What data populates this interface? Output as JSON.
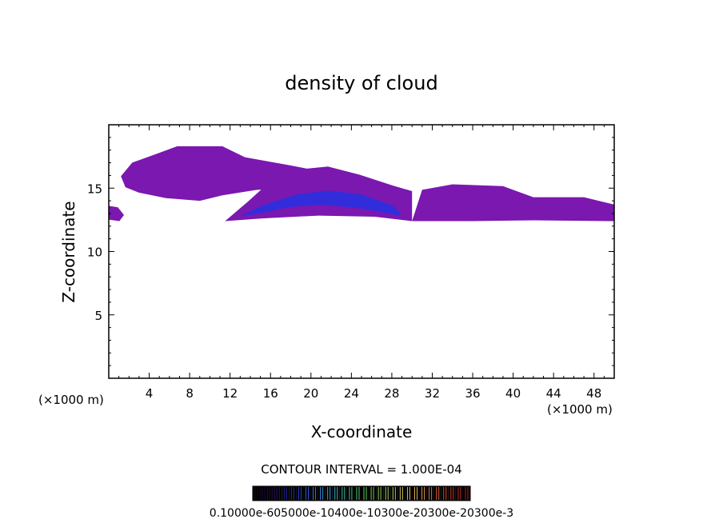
{
  "chart_data": {
    "type": "heatmap",
    "title": "density of cloud",
    "xlabel": "X-coordinate",
    "ylabel": "Z-coordinate",
    "xlim": [
      0,
      50
    ],
    "ylim": [
      0,
      20
    ],
    "x_ticks": [
      "4",
      "8",
      "12",
      "16",
      "20",
      "24",
      "28",
      "32",
      "36",
      "40",
      "44",
      "48"
    ],
    "x_tick_values": [
      4,
      8,
      12,
      16,
      20,
      24,
      28,
      32,
      36,
      40,
      44,
      48
    ],
    "y_ticks": [
      "5",
      "10",
      "15"
    ],
    "y_tick_values": [
      5,
      10,
      15
    ],
    "x_unit_left": "(×1000 m)",
    "x_unit_right": "(×1000 m)",
    "contour_interval": "CONTOUR INTERVAL = 1.000E-04",
    "colorbar_labels": "0.10000e-605000e-10400e-10300e-20300e-20300e-3",
    "colorbar_range": [
      0.0001,
      0.003
    ],
    "colorbar_colors": [
      "#1a0630",
      "#2a0a70",
      "#2030c0",
      "#3a70e0",
      "#40b0e0",
      "#40c880",
      "#70d050",
      "#b0d060",
      "#e0c060",
      "#e08040",
      "#e04030",
      "#b02020"
    ],
    "cloud_regions": [
      {
        "name": "upper-left-cloud",
        "x": [
          1.2,
          23.5
        ],
        "z": [
          14.0,
          18.3
        ],
        "color": "#7a18b0"
      },
      {
        "name": "main-anvil",
        "x": [
          11.5,
          30
        ],
        "z": [
          12.4,
          16.7
        ],
        "color": "#7a18b0"
      },
      {
        "name": "right-band",
        "x": [
          30,
          50
        ],
        "z": [
          12.4,
          15.3
        ],
        "color": "#7a18b0"
      },
      {
        "name": "left-edge",
        "x": [
          0,
          1.5
        ],
        "z": [
          12.4,
          13.6
        ],
        "color": "#7a18b0"
      },
      {
        "name": "core-high-density",
        "x": [
          13,
          29
        ],
        "z": [
          12.8,
          14.8
        ],
        "color": "#2a30e0"
      }
    ]
  }
}
